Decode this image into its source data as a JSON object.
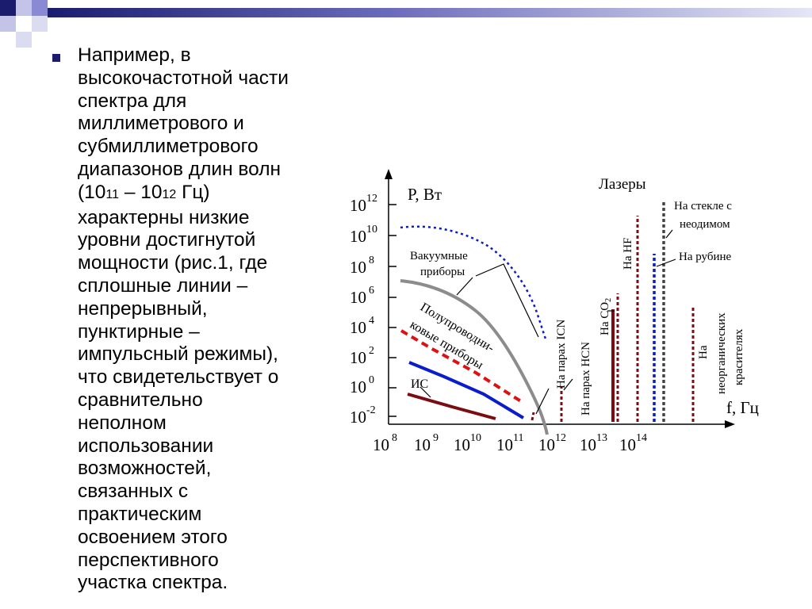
{
  "slide": {
    "paragraph_lines": [
      "Например, в",
      "высокочастотной части",
      "спектра для",
      "миллиметрового и",
      "субмиллиметрового",
      "диапазонов длин волн",
      "(10",
      "11",
      " – 10",
      "12",
      " Гц)",
      "характерны низкие",
      "уровни достигнутой",
      "мощности (рис.1, где",
      "сплошные линии –",
      "непрерывный,",
      "пунктирные –",
      "импульсный режимы),",
      "что свидетельствует о",
      "сравнительно",
      "неполном",
      "использовании",
      "возможностей,",
      "связанных с",
      "практическим",
      "освоением этого",
      "перспективного",
      "участка спектра."
    ]
  },
  "figure": {
    "y_axis_label": "P, Вт",
    "x_axis_label": "f, Гц",
    "y_ticks": [
      {
        "base": "10",
        "exp": "12"
      },
      {
        "base": "10",
        "exp": "10"
      },
      {
        "base": "10",
        "exp": "8"
      },
      {
        "base": "10",
        "exp": "6"
      },
      {
        "base": "10",
        "exp": "4"
      },
      {
        "base": "10",
        "exp": "2"
      },
      {
        "base": "10",
        "exp": "0"
      },
      {
        "base": "10",
        "exp": "-2"
      }
    ],
    "x_ticks": [
      {
        "base": "10",
        "exp": "8"
      },
      {
        "base": "10",
        "exp": "9"
      },
      {
        "base": "10",
        "exp": "10"
      },
      {
        "base": "10",
        "exp": "11"
      },
      {
        "base": "10",
        "exp": "12"
      },
      {
        "base": "10",
        "exp": "13"
      },
      {
        "base": "10",
        "exp": "14"
      }
    ],
    "labels": {
      "lasers": "Лазеры",
      "vacuum_1": "Вакуумные",
      "vacuum_2": "приборы",
      "semi_1": "Полупроводни-",
      "semi_2": "ковые приборы",
      "ic": "ИС",
      "icn": "На парах ICN",
      "hcn": "На парах HCN",
      "co2_a": "На CO",
      "co2_b": "2",
      "hf": "На HF",
      "glass_1": "На стекле с",
      "glass_2": "неодимом",
      "ruby": "На рубине",
      "inorg_1": "На",
      "inorg_2": "неорганических",
      "inorg_3": "красителях"
    },
    "colors": {
      "vacuum": "#8c8c8c",
      "blue": "#0a1ccc",
      "red": "#e01010",
      "darkred": "#7a0c12",
      "gray_dark": "#444444"
    }
  }
}
